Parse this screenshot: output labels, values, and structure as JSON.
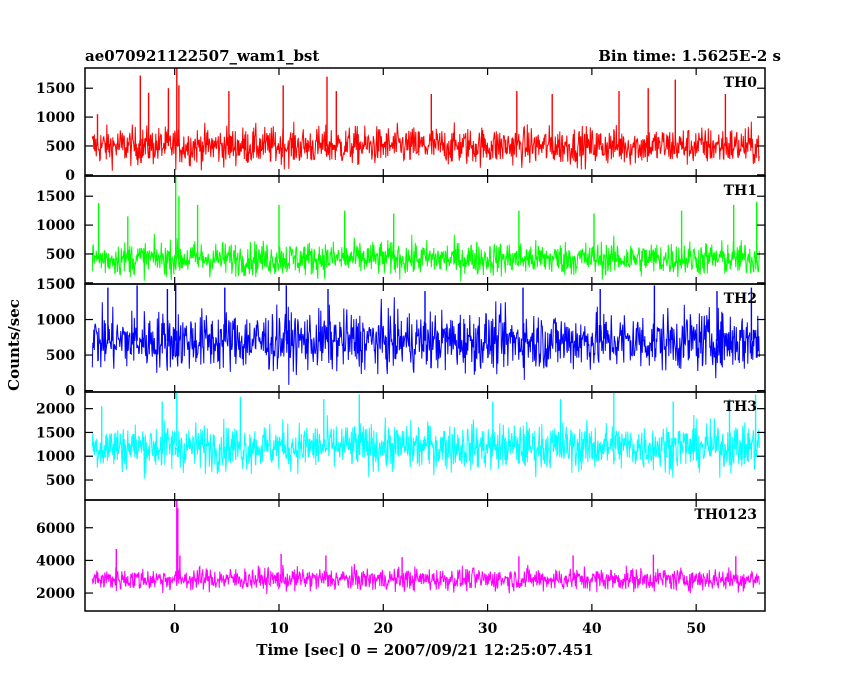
{
  "header": {
    "title_left": "ae070921122507_wam1_bst",
    "title_right": "Bin time: 1.5625E-2 s"
  },
  "chart_data": {
    "type": "line",
    "xlabel": "Time [sec] 0 = 2007/09/21 12:25:07.451",
    "ylabel": "Counts/sec",
    "xlim": [
      -8.6,
      56.6
    ],
    "x_ticks": [
      0,
      10,
      20,
      30,
      40,
      50
    ],
    "x_range": [
      -7.9,
      56.1
    ],
    "grid": false,
    "panels": [
      {
        "name": "TH0",
        "color": "#ff0000",
        "ylim": [
          -20,
          1850
        ],
        "y_ticks": [
          0,
          500,
          1000,
          1500
        ],
        "baseline": 500,
        "noise": 300,
        "spikes": [
          [
            -7.4,
            1050
          ],
          [
            -3.3,
            1720
          ],
          [
            -2.5,
            1420
          ],
          [
            -0.6,
            1500
          ],
          [
            0.2,
            1850
          ],
          [
            0.4,
            1550
          ],
          [
            5.2,
            1450
          ],
          [
            10.4,
            1550
          ],
          [
            14.6,
            1700
          ],
          [
            15.5,
            1450
          ],
          [
            24.6,
            1400
          ],
          [
            32.8,
            1450
          ],
          [
            36.2,
            1400
          ],
          [
            42.6,
            1450
          ],
          [
            45.4,
            1500
          ],
          [
            48.0,
            1650
          ],
          [
            52.8,
            1400
          ]
        ]
      },
      {
        "name": "TH1",
        "color": "#00ff00",
        "ylim": [
          -20,
          1850
        ],
        "y_ticks": [
          0,
          500,
          1000,
          1500
        ],
        "baseline": 420,
        "noise": 270,
        "spikes": [
          [
            -7.3,
            1380
          ],
          [
            -4.5,
            1150
          ],
          [
            0.1,
            1850
          ],
          [
            0.4,
            1500
          ],
          [
            2.2,
            1350
          ],
          [
            10.0,
            1350
          ],
          [
            16.3,
            1250
          ],
          [
            21.0,
            1200
          ],
          [
            33.0,
            1250
          ],
          [
            40.2,
            1200
          ],
          [
            48.6,
            1250
          ],
          [
            53.6,
            1350
          ],
          [
            55.8,
            1400
          ]
        ]
      },
      {
        "name": "TH2",
        "color": "#0000ff",
        "ylim": [
          -20,
          1500
        ],
        "y_ticks": [
          0,
          500,
          1000,
          1500
        ],
        "baseline": 700,
        "noise": 380,
        "spikes": [
          [
            -6.4,
            1450
          ],
          [
            -3.6,
            1480
          ],
          [
            -0.7,
            1430
          ],
          [
            0.1,
            1500
          ],
          [
            4.8,
            1450
          ],
          [
            10.7,
            1480
          ],
          [
            14.7,
            1430
          ],
          [
            24.0,
            1400
          ],
          [
            33.4,
            1450
          ],
          [
            40.8,
            1430
          ],
          [
            46.0,
            1480
          ],
          [
            52.0,
            1400
          ],
          [
            55.3,
            1450
          ]
        ]
      },
      {
        "name": "TH3",
        "color": "#00ffff",
        "ylim": [
          80,
          2350
        ],
        "y_ticks": [
          500,
          1000,
          1500,
          2000
        ],
        "baseline": 1200,
        "noise": 450,
        "spikes": [
          [
            -7.0,
            2050
          ],
          [
            -1.2,
            2150
          ],
          [
            0.2,
            2350
          ],
          [
            6.3,
            2250
          ],
          [
            14.3,
            2200
          ],
          [
            17.7,
            2300
          ],
          [
            30.5,
            2150
          ],
          [
            37.0,
            2200
          ],
          [
            42.1,
            2350
          ],
          [
            47.8,
            2150
          ],
          [
            53.2,
            2200
          ],
          [
            55.7,
            2300
          ]
        ]
      },
      {
        "name": "TH0123",
        "color": "#ff00ff",
        "ylim": [
          900,
          7700
        ],
        "y_ticks": [
          2000,
          4000,
          6000
        ],
        "baseline": 2850,
        "noise": 640,
        "spikes": [
          [
            -5.6,
            4700
          ],
          [
            0.2,
            7700
          ],
          [
            0.3,
            7200
          ],
          [
            0.5,
            4300
          ],
          [
            10.2,
            4400
          ],
          [
            14.5,
            4300
          ],
          [
            21.8,
            4200
          ],
          [
            33.0,
            4250
          ],
          [
            38.2,
            4300
          ],
          [
            45.9,
            4350
          ],
          [
            53.8,
            4250
          ]
        ]
      }
    ]
  }
}
